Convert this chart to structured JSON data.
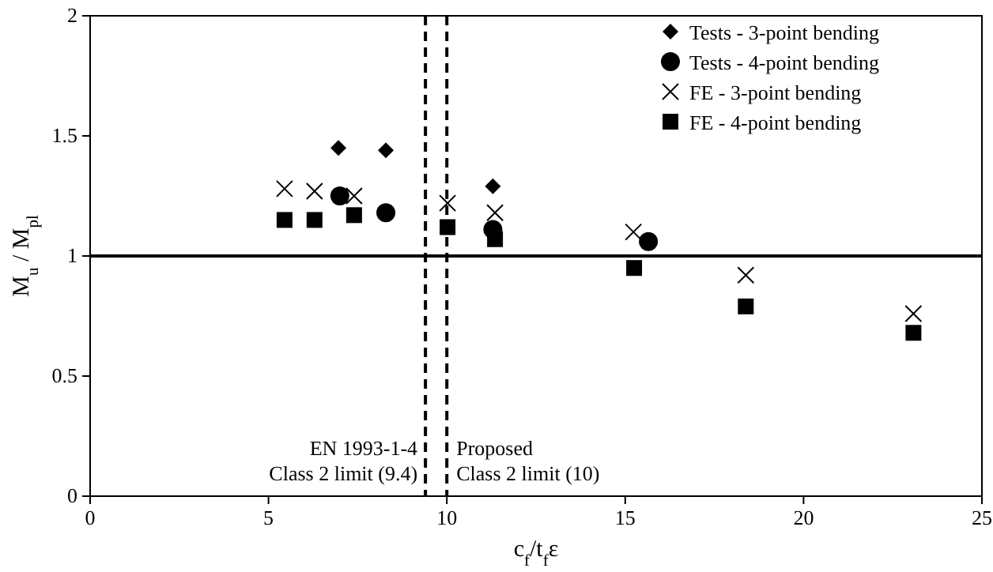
{
  "chart_data": {
    "type": "scatter",
    "xlabel": "c$_{f}$/t$_{f}$ε",
    "ylabel": "M$_{u}$ / M$_{pl}$",
    "xlim": [
      0,
      25
    ],
    "xticks": [
      0,
      5,
      10,
      15,
      20,
      25
    ],
    "ylim": [
      0,
      2
    ],
    "yticks": [
      0,
      0.5,
      1,
      1.5,
      2
    ],
    "grid": false,
    "legend": "top right",
    "series": [
      {
        "name": "Tests - 3-point bending",
        "color": "#000000",
        "marker": "diamond",
        "x": [
          6.96,
          8.29,
          11.29
        ],
        "values": [
          1.45,
          1.44,
          1.29
        ]
      },
      {
        "name": "Tests - 4-point bending",
        "color": "#000000",
        "marker": "circle",
        "x": [
          7.0,
          8.29,
          11.29,
          15.65
        ],
        "values": [
          1.25,
          1.18,
          1.11,
          1.06
        ]
      },
      {
        "name": "FE - 3-point bending",
        "color": "#000000",
        "marker": "cross",
        "x": [
          5.45,
          6.29,
          7.4,
          10.02,
          11.35,
          15.23,
          18.38,
          23.08
        ],
        "values": [
          1.28,
          1.27,
          1.25,
          1.22,
          1.18,
          1.1,
          0.92,
          0.76
        ]
      },
      {
        "name": "FE - 4-point bending",
        "color": "#000000",
        "marker": "square",
        "x": [
          5.45,
          6.29,
          7.4,
          10.02,
          11.35,
          15.25,
          18.38,
          23.08
        ],
        "values": [
          1.15,
          1.15,
          1.17,
          1.12,
          1.07,
          0.95,
          0.79,
          0.68
        ]
      }
    ],
    "ref_lines": [
      {
        "axis": "x",
        "value": 9.4,
        "label": "EN 1993-1-4\nClass 2 limit (9.4)",
        "line_style": "dashed",
        "color": "#000000"
      },
      {
        "axis": "x",
        "value": 10,
        "label": "Proposed\nClass 2 limit (10)",
        "line_style": "dashed",
        "color": "#000000"
      },
      {
        "axis": "y",
        "value": 1,
        "line_style": "solid",
        "color": "#000000"
      }
    ]
  }
}
